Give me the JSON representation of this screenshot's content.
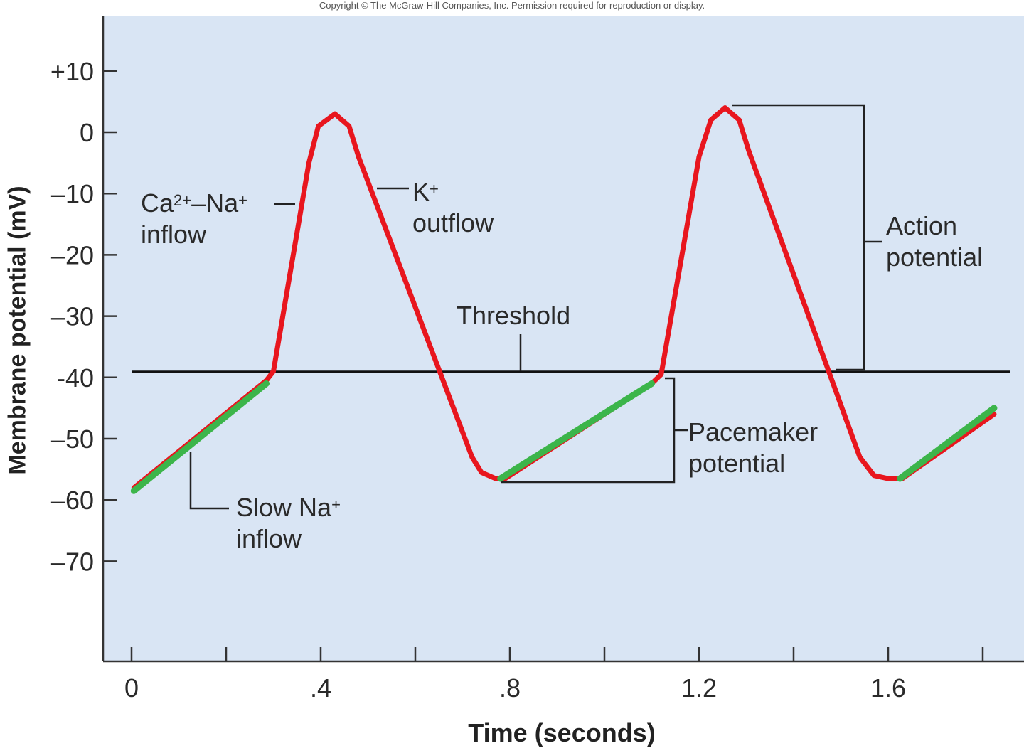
{
  "copyright": "Copyright © The McGraw-Hill Companies, Inc. Permission required for reproduction or display.",
  "chart_data": {
    "type": "line",
    "xlabel": "Time (seconds)",
    "ylabel": "Membrane potential (mV)",
    "xlim": [
      0,
      1.88
    ],
    "ylim": [
      -85,
      19
    ],
    "xticks": [
      0,
      0.2,
      0.4,
      0.6,
      0.8,
      1.0,
      1.2,
      1.4,
      1.6,
      1.8
    ],
    "xtick_labels": [
      {
        "value": 0,
        "label": "0"
      },
      {
        "value": 0.4,
        "label": ".4"
      },
      {
        "value": 0.8,
        "label": ".8"
      },
      {
        "value": 1.2,
        "label": "1.2"
      },
      {
        "value": 1.6,
        "label": "1.6"
      }
    ],
    "yticks": [
      {
        "value": 10,
        "label": "+10"
      },
      {
        "value": 0,
        "label": "0"
      },
      {
        "value": -10,
        "label": "–10"
      },
      {
        "value": -20,
        "label": "–20"
      },
      {
        "value": -30,
        "label": "–30"
      },
      {
        "value": -40,
        "label": "-40"
      },
      {
        "value": -50,
        "label": "–50"
      },
      {
        "value": -60,
        "label": "–60"
      },
      {
        "value": -70,
        "label": "–70"
      }
    ],
    "threshold": -40,
    "grid": false,
    "colors": {
      "background": "#d9e5f4",
      "potential": "#e8161e",
      "pacemaker": "#3cb54a",
      "axis": "#333333"
    },
    "potential_curve": [
      [
        0.005,
        -58
      ],
      [
        0.285,
        -40.5
      ],
      [
        0.3,
        -39
      ],
      [
        0.375,
        -5
      ],
      [
        0.395,
        1
      ],
      [
        0.43,
        3
      ],
      [
        0.46,
        1
      ],
      [
        0.48,
        -4
      ],
      [
        0.72,
        -53
      ],
      [
        0.74,
        -55.5
      ],
      [
        0.77,
        -56.5
      ],
      [
        0.79,
        -56.5
      ],
      [
        1.1,
        -41
      ],
      [
        1.12,
        -39.5
      ],
      [
        1.2,
        -4
      ],
      [
        1.225,
        2
      ],
      [
        1.255,
        4
      ],
      [
        1.285,
        2
      ],
      [
        1.305,
        -3
      ],
      [
        1.54,
        -53
      ],
      [
        1.57,
        -56
      ],
      [
        1.6,
        -56.5
      ],
      [
        1.63,
        -56.5
      ],
      [
        1.824,
        -46
      ]
    ],
    "pacemaker_segments": [
      [
        [
          0.005,
          -58.5
        ],
        [
          0.285,
          -41
        ]
      ],
      [
        [
          0.78,
          -56.5
        ],
        [
          1.1,
          -41
        ]
      ],
      [
        [
          1.625,
          -56.5
        ],
        [
          1.824,
          -45
        ]
      ]
    ],
    "annotations": {
      "ca_na": {
        "a": "Ca",
        "b": "2+",
        "c": "–Na",
        "d": "+",
        "e": "inflow"
      },
      "k": {
        "a": "K",
        "b": "+",
        "c": "outflow"
      },
      "threshold": "Threshold",
      "action": {
        "line1": "Action",
        "line2": "potential"
      },
      "pacemaker": {
        "line1": "Pacemaker",
        "line2": "potential"
      },
      "slow_na": {
        "a": "Slow Na",
        "b": "+",
        "c": "inflow"
      }
    }
  }
}
